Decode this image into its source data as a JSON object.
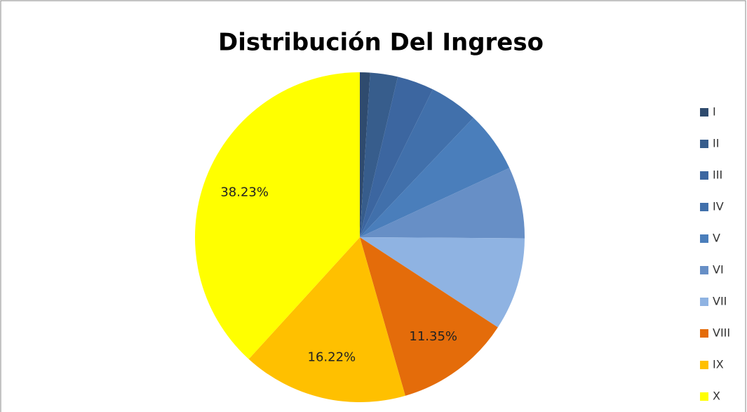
{
  "chart_data": {
    "type": "pie",
    "title": "Distribución Del Ingreso",
    "categories": [
      "I",
      "II",
      "III",
      "IV",
      "V",
      "VI",
      "VII",
      "VIII",
      "IX",
      "X"
    ],
    "values": [
      1.0,
      2.7,
      3.6,
      4.8,
      6.0,
      7.0,
      9.1,
      11.35,
      16.22,
      38.23
    ],
    "value_labels": [
      null,
      null,
      null,
      null,
      null,
      null,
      null,
      "11.35%",
      "16.22%",
      "38.23%"
    ],
    "colors": [
      "#2f4b6e",
      "#375d8c",
      "#3c66a0",
      "#4170ab",
      "#4a7ebb",
      "#678fc6",
      "#8fb3e2",
      "#e46c0a",
      "#ffc000",
      "#ffff00"
    ],
    "legend": "right"
  }
}
